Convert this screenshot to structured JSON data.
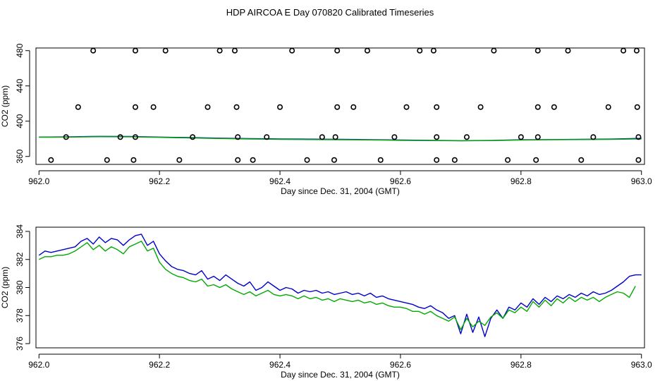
{
  "figure_title": "HDP AIRCOA E  Day 070820  Calibrated Timeseries",
  "colors": {
    "blue": "#0000cc",
    "green": "#00aa00",
    "axis": "#000000"
  },
  "chart_data": [
    {
      "type": "scatter",
      "title": "HDP AIRCOA E  Day 070820  Calibrated Timeseries",
      "xlabel": "Day since Dec. 31, 2004 (GMT)",
      "ylabel": "CO2 (ppm)",
      "xlim": [
        961.995,
        963.005
      ],
      "ylim": [
        351,
        483
      ],
      "xticks": [
        962.0,
        962.2,
        962.4,
        962.6,
        962.8,
        963.0
      ],
      "xtick_labels": [
        "962.0",
        "962.2",
        "962.4",
        "962.6",
        "962.8",
        "963.0"
      ],
      "yticks": [
        360,
        400,
        440,
        480
      ],
      "ytick_labels": [
        "360",
        "400",
        "440",
        "480"
      ],
      "calibration_points": {
        "480": [
          962.09,
          962.16,
          962.21,
          962.3,
          962.325,
          962.42,
          962.495,
          962.545,
          962.632,
          962.655,
          962.755,
          962.828,
          962.878,
          962.97,
          962.992
        ],
        "416": [
          962.065,
          962.16,
          962.19,
          962.28,
          962.328,
          962.4,
          962.495,
          962.522,
          962.61,
          962.66,
          962.733,
          962.828,
          962.855,
          962.945,
          962.993
        ],
        "382": [
          962.045,
          962.135,
          962.16,
          962.255,
          962.33,
          962.378,
          962.47,
          962.492,
          962.59,
          962.66,
          962.71,
          962.8,
          962.828,
          962.92,
          962.995
        ],
        "356": [
          962.02,
          962.113,
          962.157,
          962.233,
          962.33,
          962.355,
          962.445,
          962.49,
          962.567,
          962.66,
          962.69,
          962.778,
          962.825,
          962.9,
          962.995
        ]
      },
      "series": [
        {
          "name": "blue",
          "color": "#0000cc",
          "x": [
            962.0,
            962.05,
            962.1,
            962.15,
            962.2,
            962.25,
            962.3,
            962.35,
            962.4,
            962.45,
            962.5,
            962.55,
            962.6,
            962.65,
            962.7,
            962.75,
            962.8,
            962.85,
            962.9,
            962.95,
            963.0
          ],
          "y": [
            382.0,
            382.3,
            382.8,
            382.7,
            382.0,
            381.4,
            380.8,
            380.2,
            379.9,
            379.6,
            379.4,
            379.1,
            378.7,
            378.3,
            377.9,
            378.1,
            378.9,
            379.2,
            379.4,
            379.7,
            380.5
          ]
        },
        {
          "name": "green",
          "color": "#00aa00",
          "x": [
            962.0,
            962.05,
            962.1,
            962.15,
            962.2,
            962.25,
            962.3,
            962.35,
            962.4,
            962.45,
            962.5,
            962.55,
            962.6,
            962.65,
            962.7,
            962.75,
            962.8,
            962.85,
            962.9,
            962.95,
            963.0
          ],
          "y": [
            381.8,
            382.0,
            382.4,
            382.3,
            381.6,
            381.0,
            380.4,
            379.8,
            379.4,
            379.2,
            379.0,
            378.8,
            378.3,
            378.0,
            377.7,
            378.0,
            378.7,
            379.0,
            379.2,
            379.4,
            379.9
          ]
        }
      ]
    },
    {
      "type": "line",
      "title": "",
      "xlabel": "Day since Dec. 31, 2004 (GMT)",
      "ylabel": "CO2 (ppm)",
      "xlim": [
        961.995,
        963.005
      ],
      "ylim": [
        375.7,
        384.3
      ],
      "xticks": [
        962.0,
        962.2,
        962.4,
        962.6,
        962.8,
        963.0
      ],
      "xtick_labels": [
        "962.0",
        "962.2",
        "962.4",
        "962.6",
        "962.8",
        "963.0"
      ],
      "yticks": [
        376,
        378,
        380,
        382,
        384
      ],
      "ytick_labels": [
        "376",
        "378",
        "380",
        "382",
        "384"
      ],
      "series": [
        {
          "name": "blue",
          "color": "#0000cc",
          "x": [
            962.0,
            962.01,
            962.02,
            962.03,
            962.04,
            962.05,
            962.06,
            962.07,
            962.08,
            962.09,
            962.1,
            962.11,
            962.12,
            962.13,
            962.14,
            962.15,
            962.16,
            962.17,
            962.18,
            962.19,
            962.2,
            962.21,
            962.22,
            962.23,
            962.24,
            962.25,
            962.26,
            962.27,
            962.28,
            962.29,
            962.3,
            962.31,
            962.32,
            962.33,
            962.34,
            962.35,
            962.36,
            962.37,
            962.38,
            962.39,
            962.4,
            962.41,
            962.42,
            962.43,
            962.44,
            962.45,
            962.46,
            962.47,
            962.48,
            962.49,
            962.5,
            962.51,
            962.52,
            962.53,
            962.54,
            962.55,
            962.56,
            962.57,
            962.58,
            962.59,
            962.6,
            962.61,
            962.62,
            962.63,
            962.64,
            962.65,
            962.66,
            962.67,
            962.68,
            962.69,
            962.7,
            962.71,
            962.72,
            962.73,
            962.74,
            962.75,
            962.76,
            962.77,
            962.78,
            962.79,
            962.8,
            962.81,
            962.82,
            962.83,
            962.84,
            962.85,
            962.86,
            962.87,
            962.88,
            962.89,
            962.9,
            962.91,
            962.92,
            962.93,
            962.94,
            962.95,
            962.96,
            962.97,
            962.98,
            962.99,
            963.0
          ],
          "y": [
            382.3,
            382.6,
            382.5,
            382.6,
            382.7,
            382.8,
            382.9,
            383.3,
            383.5,
            383.1,
            383.6,
            383.2,
            383.5,
            383.4,
            383.0,
            383.4,
            383.7,
            383.8,
            383.0,
            383.3,
            382.4,
            381.9,
            381.5,
            381.3,
            381.2,
            381.0,
            380.9,
            381.2,
            380.6,
            380.8,
            380.5,
            380.9,
            380.6,
            380.3,
            380.1,
            380.4,
            379.8,
            380.0,
            380.4,
            380.1,
            379.8,
            380.0,
            379.9,
            379.6,
            379.8,
            379.7,
            379.8,
            379.6,
            379.7,
            379.5,
            379.6,
            379.7,
            379.5,
            379.6,
            379.4,
            379.6,
            379.3,
            379.4,
            379.2,
            379.1,
            379.0,
            378.9,
            378.8,
            378.6,
            378.5,
            378.7,
            378.4,
            378.2,
            377.8,
            378.0,
            376.7,
            378.1,
            376.8,
            377.9,
            376.5,
            377.8,
            378.4,
            377.8,
            378.6,
            378.4,
            378.9,
            378.6,
            379.2,
            378.8,
            379.3,
            379.0,
            379.4,
            379.2,
            379.5,
            379.3,
            379.6,
            379.4,
            379.7,
            379.5,
            379.6,
            379.8,
            380.1,
            380.4,
            380.8,
            380.9,
            380.9
          ]
        },
        {
          "name": "green",
          "color": "#00aa00",
          "x": [
            962.0,
            962.01,
            962.02,
            962.03,
            962.04,
            962.05,
            962.06,
            962.07,
            962.08,
            962.09,
            962.1,
            962.11,
            962.12,
            962.13,
            962.14,
            962.15,
            962.16,
            962.17,
            962.18,
            962.19,
            962.2,
            962.21,
            962.22,
            962.23,
            962.24,
            962.25,
            962.26,
            962.27,
            962.28,
            962.29,
            962.3,
            962.31,
            962.32,
            962.33,
            962.34,
            962.35,
            962.36,
            962.37,
            962.38,
            962.39,
            962.4,
            962.41,
            962.42,
            962.43,
            962.44,
            962.45,
            962.46,
            962.47,
            962.48,
            962.49,
            962.5,
            962.51,
            962.52,
            962.53,
            962.54,
            962.55,
            962.56,
            962.57,
            962.58,
            962.59,
            962.6,
            962.61,
            962.62,
            962.63,
            962.64,
            962.65,
            962.66,
            962.67,
            962.68,
            962.69,
            962.7,
            962.71,
            962.72,
            962.73,
            962.74,
            962.75,
            962.76,
            962.77,
            962.78,
            962.79,
            962.8,
            962.81,
            962.82,
            962.83,
            962.84,
            962.85,
            962.86,
            962.87,
            962.88,
            962.89,
            962.9,
            962.91,
            962.92,
            962.93,
            962.94,
            962.95,
            962.96,
            962.97,
            962.98,
            962.99
          ],
          "y": [
            382.0,
            382.2,
            382.2,
            382.3,
            382.3,
            382.4,
            382.6,
            382.9,
            383.2,
            382.7,
            383.0,
            382.6,
            382.9,
            382.7,
            382.4,
            382.9,
            383.1,
            383.3,
            382.6,
            382.8,
            381.8,
            381.3,
            381.0,
            380.8,
            380.7,
            380.5,
            380.4,
            380.6,
            380.1,
            380.2,
            380.0,
            380.2,
            379.9,
            379.7,
            379.5,
            379.7,
            379.4,
            379.6,
            379.8,
            379.5,
            379.4,
            379.5,
            379.4,
            379.2,
            379.4,
            379.2,
            379.3,
            379.1,
            379.2,
            379.0,
            379.2,
            379.1,
            379.0,
            379.1,
            378.9,
            379.0,
            378.8,
            378.9,
            378.7,
            378.6,
            378.6,
            378.5,
            378.3,
            378.3,
            378.1,
            378.3,
            378.0,
            377.8,
            377.6,
            377.9,
            377.0,
            377.8,
            377.2,
            377.6,
            377.3,
            377.9,
            378.2,
            377.8,
            378.4,
            378.2,
            378.6,
            378.3,
            379.0,
            378.6,
            379.1,
            378.7,
            379.2,
            378.9,
            379.3,
            379.0,
            379.3,
            379.1,
            379.3,
            379.0,
            379.3,
            379.5,
            379.7,
            379.6,
            379.3,
            380.1
          ]
        }
      ]
    }
  ]
}
